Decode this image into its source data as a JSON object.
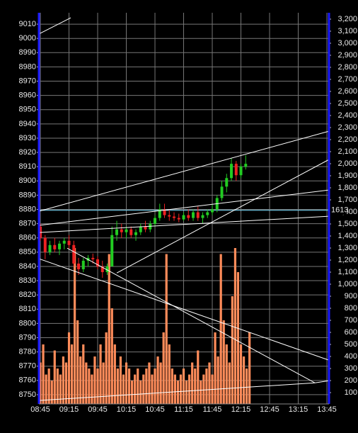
{
  "chart_data": {
    "type": "candlestick",
    "grid": true,
    "xlim": [
      -1.5,
      302.2
    ],
    "xticks": [
      {
        "value": 0,
        "label": "08:45"
      },
      {
        "value": 30,
        "label": "09:15"
      },
      {
        "value": 60,
        "label": "09:45"
      },
      {
        "value": 90,
        "label": "10:15"
      },
      {
        "value": 120,
        "label": "10:45"
      },
      {
        "value": 150,
        "label": "11:15"
      },
      {
        "value": 180,
        "label": "11:45"
      },
      {
        "value": 210,
        "label": "12:15"
      },
      {
        "value": 240,
        "label": "12:45"
      },
      {
        "value": 270,
        "label": "13:15"
      },
      {
        "value": 300,
        "label": "13:45"
      }
    ],
    "ylim": [
      8743.5,
      9018
    ],
    "yticks": [
      8750,
      8760,
      8770,
      8780,
      8790,
      8800,
      8810,
      8820,
      8830,
      8840,
      8850,
      8860,
      8870,
      8880,
      8890,
      8900,
      8910,
      8920,
      8930,
      8940,
      8950,
      8960,
      8970,
      8980,
      8990,
      9000,
      9010
    ],
    "y2lim": [
      6,
      3253
    ],
    "y2ticks": [
      100,
      200,
      300,
      400,
      500,
      600,
      700,
      800,
      900,
      {
        "value": 1000,
        "label": "1,000"
      },
      {
        "value": 1100,
        "label": "1,100"
      },
      {
        "value": 1200,
        "label": "1,200"
      },
      {
        "value": 1300,
        "label": "1,300"
      },
      {
        "value": 1400,
        "label": "1,400"
      },
      {
        "value": 1500,
        "label": "1,500"
      },
      {
        "value": 1600,
        "label": "1,600"
      },
      {
        "value": 1700,
        "label": "1,700"
      },
      {
        "value": 1800,
        "label": "1,800"
      },
      {
        "value": 1900,
        "label": "1,900"
      },
      {
        "value": 2000,
        "label": "2,000"
      },
      {
        "value": 2100,
        "label": "2,100"
      },
      {
        "value": 2200,
        "label": "2,200"
      },
      {
        "value": 2300,
        "label": "2,300"
      },
      {
        "value": 2400,
        "label": "2,400"
      },
      {
        "value": 2500,
        "label": "2,500"
      },
      {
        "value": 2600,
        "label": "2,600"
      },
      {
        "value": 2700,
        "label": "2,700"
      },
      {
        "value": 2800,
        "label": "2,800"
      },
      {
        "value": 2900,
        "label": "2,900"
      },
      {
        "value": 3000,
        "label": "3,000"
      },
      {
        "value": 3100,
        "label": "3,100"
      },
      {
        "value": 3200,
        "label": "3,200"
      }
    ],
    "reference_line": {
      "value": 1613,
      "axis": "y2",
      "color": "#7fe0ff"
    },
    "series": [
      {
        "type": "bar",
        "axis": "y2",
        "color": "#ff8c5a",
        "x": [
          0,
          3,
          6,
          9,
          12,
          15,
          18,
          21,
          24,
          27,
          30,
          33,
          36,
          39,
          42,
          45,
          48,
          51,
          54,
          57,
          60,
          63,
          66,
          69,
          72,
          75,
          78,
          81,
          84,
          87,
          90,
          93,
          96,
          99,
          102,
          105,
          108,
          111,
          114,
          117,
          120,
          123,
          126,
          129,
          132,
          135,
          138,
          141,
          144,
          147,
          150,
          153,
          156,
          159,
          162,
          165,
          168,
          171,
          174,
          177,
          180,
          183,
          186,
          189,
          192,
          195,
          198,
          201,
          204,
          207,
          210,
          213,
          216,
          219
        ],
        "values": [
          350,
          500,
          250,
          300,
          200,
          450,
          300,
          250,
          400,
          350,
          600,
          500,
          1300,
          700,
          400,
          500,
          350,
          300,
          250,
          400,
          300,
          500,
          350,
          600,
          1250,
          800,
          500,
          300,
          400,
          250,
          350,
          300,
          200,
          250,
          300,
          200,
          250,
          300,
          350,
          250,
          300,
          400,
          350,
          600,
          1250,
          500,
          300,
          250,
          200,
          250,
          300,
          200,
          250,
          350,
          300,
          450,
          200,
          250,
          300,
          350,
          250,
          600,
          400,
          1250,
          700,
          500,
          350,
          900,
          1300,
          1100,
          500,
          400,
          300,
          600
        ]
      },
      {
        "type": "candlestick",
        "up_color": "#22cc22",
        "down_color": "#ee2222",
        "x": [
          0,
          5,
          10,
          15,
          20,
          25,
          30,
          35,
          40,
          45,
          50,
          55,
          60,
          65,
          70,
          75,
          80,
          85,
          90,
          95,
          100,
          105,
          110,
          115,
          120,
          125,
          130,
          135,
          140,
          145,
          150,
          155,
          160,
          165,
          170,
          175,
          180,
          185,
          190,
          195,
          200,
          205,
          210,
          215
        ],
        "open": [
          8868,
          8860,
          8850,
          8855,
          8852,
          8856,
          8858,
          8855,
          8842,
          8838,
          8844,
          8846,
          8845,
          8840,
          8836,
          8840,
          8862,
          8866,
          8864,
          8866,
          8862,
          8864,
          8868,
          8866,
          8870,
          8874,
          8880,
          8876,
          8875,
          8874,
          8873,
          8876,
          8874,
          8878,
          8874,
          8876,
          8878,
          8880,
          8888,
          8896,
          8902,
          8912,
          8904,
          8910
        ],
        "high": [
          8870,
          8862,
          8858,
          8860,
          8858,
          8860,
          8862,
          8858,
          8846,
          8846,
          8848,
          8849,
          8847,
          8844,
          8842,
          8868,
          8872,
          8870,
          8868,
          8868,
          8866,
          8870,
          8872,
          8872,
          8876,
          8884,
          8884,
          8880,
          8878,
          8877,
          8878,
          8880,
          8880,
          8882,
          8878,
          8880,
          8884,
          8890,
          8900,
          8905,
          8916,
          8914,
          8912,
          8918
        ],
        "low": [
          8858,
          8845,
          8848,
          8850,
          8848,
          8852,
          8852,
          8840,
          8834,
          8836,
          8840,
          8842,
          8838,
          8832,
          8834,
          8840,
          8858,
          8860,
          8860,
          8860,
          8858,
          8862,
          8864,
          8864,
          8868,
          8872,
          8874,
          8872,
          8872,
          8871,
          8872,
          8872,
          8872,
          8872,
          8870,
          8874,
          8876,
          8878,
          8886,
          8892,
          8900,
          8900,
          8902,
          8908
        ],
        "close": [
          8860,
          8850,
          8855,
          8852,
          8856,
          8858,
          8855,
          8842,
          8838,
          8844,
          8846,
          8845,
          8840,
          8836,
          8840,
          8862,
          8866,
          8864,
          8866,
          8862,
          8864,
          8868,
          8866,
          8870,
          8874,
          8880,
          8876,
          8875,
          8874,
          8873,
          8876,
          8874,
          8878,
          8874,
          8876,
          8878,
          8880,
          8888,
          8896,
          8902,
          8912,
          8904,
          8910,
          8912
        ]
      }
    ],
    "trendlines": [
      {
        "x": [
          -1.5,
          31.9
        ],
        "y": [
          9003.1,
          9014.5
        ]
      },
      {
        "x": [
          -1.5,
          302.2
        ],
        "y": [
          8878.7,
          8934.9
        ]
      },
      {
        "x": [
          80,
          302.2
        ],
        "y": [
          8835.4,
          8915.0
        ]
      },
      {
        "x": [
          -1.5,
          302.2
        ],
        "y": [
          8868.8,
          8893.6
        ]
      },
      {
        "x": [
          -1.5,
          302.2
        ],
        "y": [
          8863.8,
          8875.2
        ]
      },
      {
        "x": [
          -1.5,
          302.2
        ],
        "y": [
          8845.4,
          8774.2
        ]
      },
      {
        "x": [
          28.1,
          287.4
        ],
        "y": [
          8852.8,
          8758.3
        ]
      },
      {
        "x": [
          -1.5,
          287.4
        ],
        "y": [
          8745.9,
          8758.3
        ]
      },
      {
        "x": [
          287.4,
          302.2
        ],
        "y": [
          8758.3,
          8759.8
        ]
      }
    ]
  }
}
